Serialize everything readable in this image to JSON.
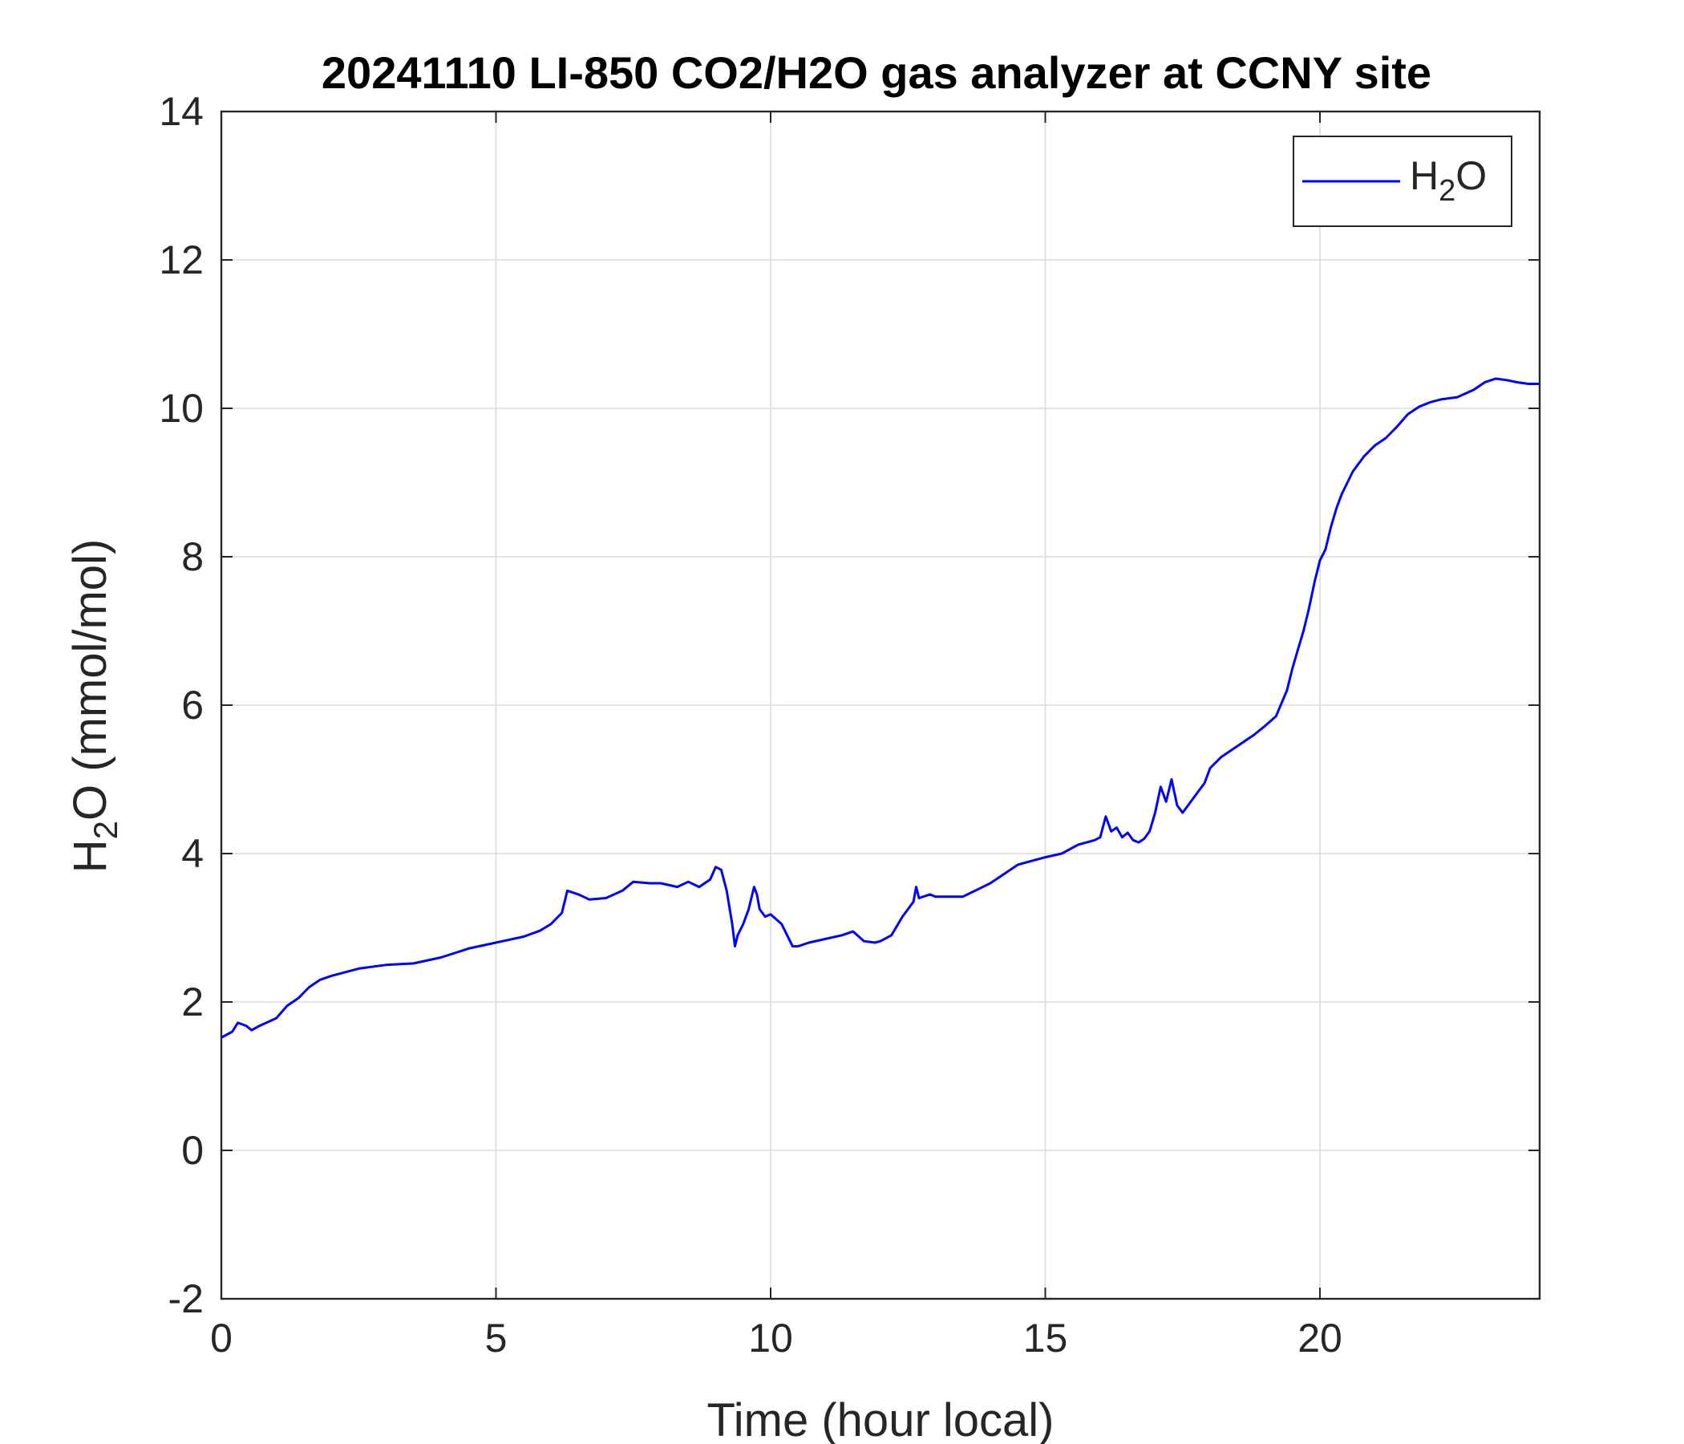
{
  "chart_data": {
    "type": "line",
    "title": "20241110 LI-850 CO2/H2O gas analyzer at CCNY site",
    "xlabel": "Time (hour local)",
    "ylabel": {
      "base": "H",
      "sub": "2",
      "rest": "O (mmol/mol)"
    },
    "xlim": [
      0,
      24
    ],
    "ylim": [
      -2,
      14
    ],
    "xticks": [
      0,
      5,
      10,
      15,
      20
    ],
    "xtick_labels": [
      "0",
      "5",
      "10",
      "15",
      "20"
    ],
    "yticks": [
      -2,
      0,
      2,
      4,
      6,
      8,
      10,
      12,
      14
    ],
    "ytick_labels": [
      "-2",
      "0",
      "2",
      "4",
      "6",
      "8",
      "10",
      "12",
      "14"
    ],
    "grid": true,
    "legend_position": "top-right",
    "series": [
      {
        "name": "H2O",
        "legend_label": {
          "base": "H",
          "sub": "2",
          "rest": "O"
        },
        "color": "#0000ff",
        "x": [
          0,
          0.2,
          0.3,
          0.45,
          0.55,
          0.7,
          1.0,
          1.2,
          1.4,
          1.6,
          1.8,
          2.0,
          2.5,
          3.0,
          3.5,
          4.0,
          4.5,
          5.0,
          5.5,
          5.8,
          6.0,
          6.2,
          6.3,
          6.5,
          6.7,
          7.0,
          7.3,
          7.5,
          7.8,
          8.0,
          8.3,
          8.5,
          8.7,
          8.9,
          9.0,
          9.1,
          9.2,
          9.3,
          9.35,
          9.4,
          9.5,
          9.6,
          9.7,
          9.75,
          9.8,
          9.9,
          10.0,
          10.2,
          10.3,
          10.4,
          10.5,
          10.7,
          11.0,
          11.3,
          11.5,
          11.7,
          11.9,
          12.0,
          12.2,
          12.4,
          12.6,
          12.65,
          12.7,
          12.9,
          13.0,
          13.5,
          14.0,
          14.5,
          15.0,
          15.3,
          15.6,
          15.9,
          16.0,
          16.1,
          16.2,
          16.3,
          16.4,
          16.5,
          16.6,
          16.7,
          16.8,
          16.9,
          17.0,
          17.1,
          17.2,
          17.3,
          17.4,
          17.5,
          17.7,
          17.9,
          18.0,
          18.2,
          18.5,
          18.8,
          19.0,
          19.2,
          19.4,
          19.5,
          19.6,
          19.7,
          19.8,
          19.9,
          20.0,
          20.1,
          20.2,
          20.3,
          20.4,
          20.5,
          20.6,
          20.8,
          21.0,
          21.2,
          21.4,
          21.6,
          21.8,
          22.0,
          22.2,
          22.5,
          22.8,
          23.0,
          23.2,
          23.4,
          23.6,
          23.8,
          24.0
        ],
        "y": [
          1.52,
          1.6,
          1.72,
          1.68,
          1.62,
          1.68,
          1.78,
          1.95,
          2.05,
          2.2,
          2.3,
          2.35,
          2.45,
          2.5,
          2.52,
          2.6,
          2.72,
          2.8,
          2.88,
          2.96,
          3.05,
          3.2,
          3.5,
          3.45,
          3.38,
          3.4,
          3.5,
          3.62,
          3.6,
          3.6,
          3.55,
          3.62,
          3.55,
          3.65,
          3.82,
          3.78,
          3.5,
          3.05,
          2.75,
          2.9,
          3.05,
          3.25,
          3.55,
          3.45,
          3.25,
          3.15,
          3.18,
          3.05,
          2.9,
          2.75,
          2.75,
          2.8,
          2.85,
          2.9,
          2.95,
          2.82,
          2.8,
          2.82,
          2.9,
          3.15,
          3.35,
          3.55,
          3.4,
          3.45,
          3.42,
          3.42,
          3.6,
          3.85,
          3.95,
          4.0,
          4.12,
          4.18,
          4.22,
          4.5,
          4.3,
          4.35,
          4.22,
          4.28,
          4.18,
          4.15,
          4.2,
          4.3,
          4.55,
          4.9,
          4.7,
          5.0,
          4.65,
          4.55,
          4.75,
          4.95,
          5.15,
          5.3,
          5.45,
          5.6,
          5.72,
          5.85,
          6.2,
          6.5,
          6.75,
          7.0,
          7.3,
          7.65,
          7.95,
          8.1,
          8.4,
          8.65,
          8.85,
          9.0,
          9.15,
          9.35,
          9.5,
          9.6,
          9.75,
          9.92,
          10.02,
          10.08,
          10.12,
          10.15,
          10.25,
          10.35,
          10.4,
          10.38,
          10.35,
          10.33,
          10.33
        ]
      }
    ]
  }
}
